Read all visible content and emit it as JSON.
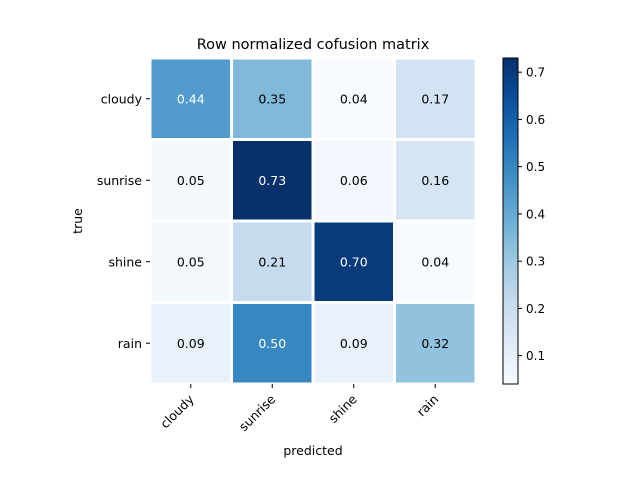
{
  "chart_data": {
    "type": "heatmap",
    "title": "Row normalized cofusion matrix",
    "xlabel": "predicted",
    "ylabel": "true",
    "x_categories": [
      "cloudy",
      "sunrise",
      "shine",
      "rain"
    ],
    "y_categories": [
      "cloudy",
      "sunrise",
      "shine",
      "rain"
    ],
    "values": [
      [
        0.44,
        0.35,
        0.04,
        0.17
      ],
      [
        0.05,
        0.73,
        0.06,
        0.16
      ],
      [
        0.05,
        0.21,
        0.7,
        0.04
      ],
      [
        0.09,
        0.5,
        0.09,
        0.32
      ]
    ],
    "colormap": "Blues",
    "colorbar": {
      "vmin": 0.04,
      "vmax": 0.73,
      "ticks": [
        0.1,
        0.2,
        0.3,
        0.4,
        0.5,
        0.6,
        0.7
      ],
      "tick_labels": [
        "0.1",
        "0.2",
        "0.3",
        "0.4",
        "0.5",
        "0.6",
        "0.7"
      ]
    },
    "grid": false,
    "cell_border_color": "#ffffff",
    "text_color_light": "#ffffff",
    "text_color_dark": "#000000"
  }
}
